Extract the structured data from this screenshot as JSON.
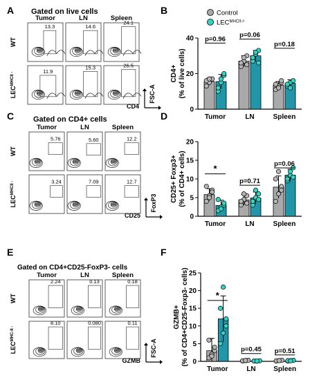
{
  "panels": {
    "A": {
      "letter": "A",
      "title": "Gated on live cells",
      "columns": [
        "Tumor",
        "LN",
        "Spleen"
      ],
      "rows": [
        "WT",
        "LEC"
      ],
      "row2_sup": "MHCII -",
      "values": [
        [
          "13.3",
          "14.6",
          "24.1"
        ],
        [
          "11.9",
          "15.3",
          "26.5"
        ]
      ],
      "x_axis": "CD4",
      "y_axis": "FSC-A"
    },
    "C": {
      "letter": "C",
      "title": "Gated on CD4+ cells",
      "columns": [
        "Tumor",
        "LN",
        "Spleen"
      ],
      "rows": [
        "WT",
        "LEC"
      ],
      "row2_sup": "MHCII -",
      "values": [
        [
          "5.76",
          "5.60",
          "12.2"
        ],
        [
          "3.24",
          "7.09",
          "12.7"
        ]
      ],
      "x_axis": "CD25",
      "y_axis": "FoxP3"
    },
    "E": {
      "letter": "E",
      "title": "Gated on CD4+CD25-FoxP3- cells",
      "columns": [
        "Tumor",
        "LN",
        "Spleen"
      ],
      "rows": [
        "WT",
        "LEC"
      ],
      "row2_sup": "MHC-II -",
      "values": [
        [
          "2.24",
          "0.13",
          "0.18"
        ],
        [
          "8.10",
          "0.080",
          "0.11"
        ]
      ],
      "x_axis": "GZMB",
      "y_axis": "FSC-A"
    }
  },
  "legend": {
    "control": "Control",
    "lec": "LEC",
    "lec_sup": "MHCII-/-"
  },
  "colors": {
    "control": "#a9a9a9",
    "lec": "#2196a8",
    "lec_point": "#33d4c4"
  },
  "chart_data": [
    {
      "type": "bar",
      "panel": "B",
      "ylabel_lines": [
        "CD4+",
        "(% of live cells)"
      ],
      "ylim": [
        0,
        40
      ],
      "yticks": [
        "0",
        "20",
        "40"
      ],
      "categories": [
        "Tumor",
        "LN",
        "Spleen"
      ],
      "series": [
        {
          "name": "Control",
          "values": [
            15.5,
            27,
            13.5
          ],
          "errors": [
            2,
            3,
            2
          ],
          "points": [
            [
              13,
              15,
              17,
              16,
              17
            ],
            [
              24,
              27,
              30,
              26,
              29,
              25
            ],
            [
              11,
              13,
              15,
              14,
              12,
              16
            ]
          ]
        },
        {
          "name": "LEC",
          "values": [
            15.5,
            30,
            14.5
          ],
          "errors": [
            4,
            3,
            2
          ],
          "points": [
            [
              10,
              15,
              19,
              12,
              17,
              20
            ],
            [
              27,
              31,
              33,
              29,
              32,
              26
            ],
            [
              13,
              15,
              16,
              14,
              12
            ]
          ]
        }
      ],
      "annotations": [
        "p=0.96",
        "p=0.06",
        "p=0.18"
      ]
    },
    {
      "type": "bar",
      "panel": "D",
      "ylabel_lines": [
        "CD25+ Foxp3+",
        "(% of CD4+ cells)"
      ],
      "ylim": [
        0,
        20
      ],
      "yticks": [
        "0",
        "5",
        "10",
        "15",
        "20"
      ],
      "categories": [
        "Tumor",
        "LN",
        "Spleen"
      ],
      "series": [
        {
          "name": "Control",
          "values": [
            5.8,
            4.4,
            7.8
          ],
          "errors": [
            1.6,
            1.4,
            3.0
          ],
          "points": [
            [
              4,
              5.5,
              7,
              8,
              5,
              6.5
            ],
            [
              3,
              4.5,
              5.5,
              4,
              6,
              3.5
            ],
            [
              4,
              6,
              8,
              10,
              12,
              7
            ]
          ]
        },
        {
          "name": "LEC",
          "values": [
            2.9,
            4.9,
            11
          ],
          "errors": [
            1.4,
            1.6,
            1.6
          ],
          "points": [
            [
              1.5,
              2.5,
              3,
              4.5,
              2,
              3.5
            ],
            [
              3,
              5,
              6,
              4,
              7,
              4.5
            ],
            [
              9.5,
              11,
              13,
              10,
              12,
              10.5
            ]
          ]
        }
      ],
      "annotations": [
        "*",
        "p=0.71",
        "p=0.06"
      ]
    },
    {
      "type": "bar",
      "panel": "F",
      "ylabel_lines": [
        "GZMB+",
        "(% of CD4+CD25-Foxp3- cells)"
      ],
      "ylim": [
        0,
        25
      ],
      "yticks": [
        "0",
        "5",
        "10",
        "15",
        "20",
        "25"
      ],
      "categories": [
        "Tumor",
        "LN",
        "Spleen"
      ],
      "series": [
        {
          "name": "Control",
          "values": [
            3,
            0.2,
            0.2
          ],
          "errors": [
            3.5,
            0.1,
            0.1
          ],
          "points": [
            [
              1,
              2,
              3,
              6,
              1.5,
              4
            ],
            [
              0.1,
              0.2,
              0.3,
              0.15,
              0.25
            ],
            [
              0.1,
              0.2,
              0.3,
              0.15,
              0.2
            ]
          ]
        },
        {
          "name": "LEC",
          "values": [
            12,
            0.1,
            0.2
          ],
          "errors": [
            6.5,
            0.1,
            0.1
          ],
          "points": [
            [
              5,
              8,
              12,
              15,
              21,
              10
            ],
            [
              0.1,
              0.05,
              0.15,
              0.1,
              0.1
            ],
            [
              0.1,
              0.2,
              0.3,
              0.2,
              0.15
            ]
          ]
        }
      ],
      "annotations": [
        "*",
        "p=0.45",
        "p=0.51"
      ]
    }
  ]
}
